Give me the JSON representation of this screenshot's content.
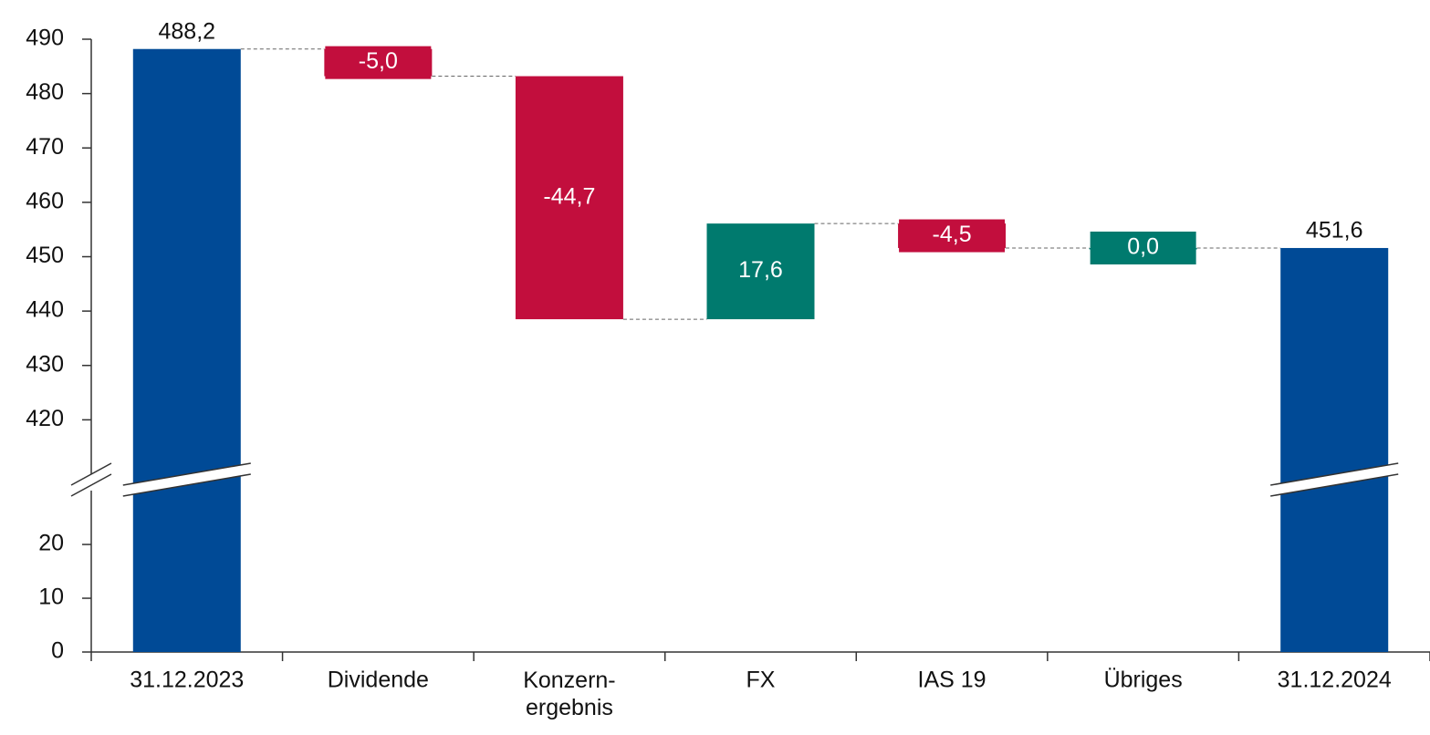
{
  "chart_data": {
    "type": "waterfall",
    "categories": [
      "31.12.2023",
      "Dividende",
      "Konzern-\nergebnis",
      "FX",
      "IAS 19",
      "Übriges",
      "31.12.2024"
    ],
    "values": [
      488.2,
      -5.0,
      -44.7,
      17.6,
      -4.5,
      0.0,
      451.6
    ],
    "value_labels": [
      "488,2",
      "-5,0",
      "-44,7",
      "17,6",
      "-4,5",
      "0,0",
      "451,6"
    ],
    "is_total": [
      true,
      false,
      false,
      false,
      false,
      false,
      true
    ],
    "colors": {
      "total": "#004a96",
      "increase": "#007a6e",
      "decrease": "#c20e3d"
    },
    "ylim": [
      0,
      490
    ],
    "axis_break": [
      29,
      410
    ],
    "yticks": [
      0,
      10,
      20,
      420,
      430,
      440,
      450,
      460,
      470,
      480,
      490
    ]
  }
}
